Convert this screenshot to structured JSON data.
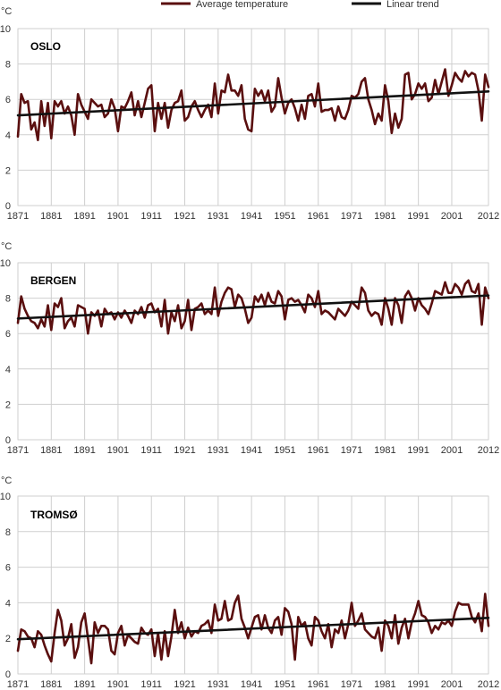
{
  "legend": {
    "average_label": "Average temperature",
    "trend_label": "Linear trend"
  },
  "colors": {
    "average": "#5a0f0f",
    "trend": "#111111",
    "grid": "#cfcfcf"
  },
  "chart_data": [
    {
      "type": "line",
      "title": "OSLO",
      "unit": "°C",
      "xlim": [
        1871,
        2012
      ],
      "ylim": [
        0,
        10
      ],
      "xticks": [
        "1871",
        "1881",
        "1891",
        "1901",
        "1911",
        "1921",
        "1931",
        "1941",
        "1951",
        "1961",
        "1971",
        "1981",
        "1991",
        "2001",
        "2012"
      ],
      "yticks": [
        "0",
        "2",
        "4",
        "6",
        "8",
        "10"
      ],
      "grid": true,
      "legend_position": "top",
      "x": [
        1871,
        1872,
        1873,
        1874,
        1875,
        1876,
        1877,
        1878,
        1879,
        1880,
        1881,
        1882,
        1883,
        1884,
        1885,
        1886,
        1887,
        1888,
        1889,
        1890,
        1891,
        1892,
        1893,
        1894,
        1895,
        1896,
        1897,
        1898,
        1899,
        1900,
        1901,
        1902,
        1903,
        1904,
        1905,
        1906,
        1907,
        1908,
        1909,
        1910,
        1911,
        1912,
        1913,
        1914,
        1915,
        1916,
        1917,
        1918,
        1919,
        1920,
        1921,
        1922,
        1923,
        1924,
        1925,
        1926,
        1927,
        1928,
        1929,
        1930,
        1931,
        1932,
        1933,
        1934,
        1935,
        1936,
        1937,
        1938,
        1939,
        1940,
        1941,
        1942,
        1943,
        1944,
        1945,
        1946,
        1947,
        1948,
        1949,
        1950,
        1951,
        1952,
        1953,
        1954,
        1955,
        1956,
        1957,
        1958,
        1959,
        1960,
        1961,
        1962,
        1963,
        1964,
        1965,
        1966,
        1967,
        1968,
        1969,
        1970,
        1971,
        1972,
        1973,
        1974,
        1975,
        1976,
        1977,
        1978,
        1979,
        1980,
        1981,
        1982,
        1983,
        1984,
        1985,
        1986,
        1987,
        1988,
        1989,
        1990,
        1991,
        1992,
        1993,
        1994,
        1995,
        1996,
        1997,
        1998,
        1999,
        2000,
        2001,
        2002,
        2003,
        2004,
        2005,
        2006,
        2007,
        2008,
        2009,
        2010,
        2011,
        2012
      ],
      "series": [
        {
          "name": "Average temperature",
          "values": [
            3.9,
            6.3,
            5.8,
            5.9,
            4.3,
            4.7,
            3.7,
            5.9,
            4.5,
            5.8,
            3.8,
            5.9,
            5.6,
            5.9,
            5.2,
            5.6,
            5.1,
            4.0,
            6.3,
            5.7,
            5.3,
            4.9,
            6.0,
            5.8,
            5.6,
            5.7,
            5.0,
            5.2,
            6.0,
            5.5,
            4.2,
            5.6,
            5.5,
            5.9,
            6.4,
            5.1,
            5.9,
            5.0,
            5.8,
            6.6,
            6.8,
            4.2,
            5.8,
            4.9,
            5.8,
            4.4,
            5.4,
            5.8,
            5.9,
            6.5,
            4.8,
            5.0,
            5.6,
            5.9,
            5.4,
            5.0,
            5.4,
            5.7,
            5.0,
            6.9,
            5.2,
            6.5,
            6.4,
            7.4,
            6.5,
            6.5,
            6.2,
            6.8,
            4.9,
            4.3,
            4.2,
            6.6,
            6.2,
            6.5,
            5.9,
            6.5,
            5.3,
            5.6,
            7.2,
            6.1,
            5.2,
            5.8,
            6.0,
            5.5,
            4.8,
            5.7,
            4.9,
            6.2,
            6.3,
            5.6,
            6.9,
            5.3,
            5.4,
            5.4,
            5.5,
            4.8,
            5.6,
            5.0,
            4.9,
            5.4,
            6.2,
            6.1,
            6.3,
            7.0,
            7.2,
            6.0,
            5.4,
            4.6,
            5.2,
            4.8,
            6.8,
            5.9,
            4.1,
            5.2,
            4.4,
            4.9,
            7.4,
            7.5,
            6.0,
            6.3,
            6.9,
            6.6,
            6.9,
            5.9,
            6.1,
            7.1,
            6.3,
            7.0,
            7.7,
            6.2,
            6.8,
            7.5,
            7.2,
            7.0,
            7.6,
            7.3,
            7.5,
            7.4,
            6.5,
            4.8,
            7.4,
            6.7
          ]
        },
        {
          "name": "Linear trend",
          "values": [
            5.1,
            6.45
          ],
          "x": [
            1871,
            2012
          ]
        }
      ]
    },
    {
      "type": "line",
      "title": "BERGEN",
      "unit": "°C",
      "xlim": [
        1871,
        2012
      ],
      "ylim": [
        0,
        10
      ],
      "xticks": [
        "1871",
        "1881",
        "1891",
        "1901",
        "1911",
        "1921",
        "1931",
        "1941",
        "1951",
        "1961",
        "1971",
        "1981",
        "1991",
        "2001",
        "2012"
      ],
      "yticks": [
        "0",
        "2",
        "4",
        "6",
        "8",
        "10"
      ],
      "grid": true,
      "x": [
        1871,
        1872,
        1873,
        1874,
        1875,
        1876,
        1877,
        1878,
        1879,
        1880,
        1881,
        1882,
        1883,
        1884,
        1885,
        1886,
        1887,
        1888,
        1889,
        1890,
        1891,
        1892,
        1893,
        1894,
        1895,
        1896,
        1897,
        1898,
        1899,
        1900,
        1901,
        1902,
        1903,
        1904,
        1905,
        1906,
        1907,
        1908,
        1909,
        1910,
        1911,
        1912,
        1913,
        1914,
        1915,
        1916,
        1917,
        1918,
        1919,
        1920,
        1921,
        1922,
        1923,
        1924,
        1925,
        1926,
        1927,
        1928,
        1929,
        1930,
        1931,
        1932,
        1933,
        1934,
        1935,
        1936,
        1937,
        1938,
        1939,
        1940,
        1941,
        1942,
        1943,
        1944,
        1945,
        1946,
        1947,
        1948,
        1949,
        1950,
        1951,
        1952,
        1953,
        1954,
        1955,
        1956,
        1957,
        1958,
        1959,
        1960,
        1961,
        1962,
        1963,
        1964,
        1965,
        1966,
        1967,
        1968,
        1969,
        1970,
        1971,
        1972,
        1973,
        1974,
        1975,
        1976,
        1977,
        1978,
        1979,
        1980,
        1981,
        1982,
        1983,
        1984,
        1985,
        1986,
        1987,
        1988,
        1989,
        1990,
        1991,
        1992,
        1993,
        1994,
        1995,
        1996,
        1997,
        1998,
        1999,
        2000,
        2001,
        2002,
        2003,
        2004,
        2005,
        2006,
        2007,
        2008,
        2009,
        2010,
        2011,
        2012
      ],
      "series": [
        {
          "name": "Average temperature",
          "values": [
            6.6,
            8.1,
            7.4,
            7.0,
            6.7,
            6.6,
            6.3,
            6.8,
            6.4,
            7.6,
            6.2,
            7.7,
            7.5,
            8.0,
            6.3,
            6.7,
            6.9,
            6.4,
            7.6,
            7.5,
            7.4,
            6.0,
            7.2,
            7.0,
            7.3,
            6.4,
            7.4,
            7.1,
            7.2,
            6.8,
            7.2,
            6.9,
            7.3,
            7.0,
            6.6,
            7.3,
            7.1,
            7.5,
            6.9,
            7.6,
            7.7,
            7.2,
            7.4,
            6.4,
            7.9,
            6.0,
            7.2,
            6.7,
            7.6,
            6.3,
            6.7,
            7.9,
            6.2,
            7.4,
            7.5,
            7.7,
            7.1,
            7.3,
            7.1,
            8.6,
            7.0,
            7.8,
            8.3,
            8.6,
            8.5,
            7.5,
            8.2,
            8.0,
            7.4,
            6.6,
            6.9,
            8.1,
            7.8,
            8.2,
            7.6,
            8.3,
            7.8,
            7.7,
            8.4,
            8.1,
            6.8,
            7.9,
            8.0,
            7.8,
            7.9,
            7.6,
            7.2,
            8.2,
            8.0,
            7.5,
            8.4,
            7.1,
            7.3,
            7.2,
            7.0,
            6.8,
            7.4,
            7.2,
            7.0,
            7.3,
            7.8,
            7.6,
            7.4,
            8.6,
            8.3,
            7.3,
            7.0,
            7.2,
            7.1,
            6.5,
            8.0,
            7.4,
            6.5,
            8.0,
            7.6,
            6.6,
            8.1,
            8.4,
            8.0,
            7.3,
            8.0,
            7.6,
            7.4,
            7.1,
            7.7,
            8.4,
            8.3,
            8.2,
            8.9,
            8.3,
            8.3,
            8.8,
            8.6,
            8.2,
            8.8,
            9.0,
            8.4,
            8.3,
            8.8,
            6.5,
            8.6,
            8.0
          ]
        },
        {
          "name": "Linear trend",
          "values": [
            6.85,
            8.15
          ],
          "x": [
            1871,
            2012
          ]
        }
      ]
    },
    {
      "type": "line",
      "title": "TROMSØ",
      "unit": "°C",
      "xlim": [
        1871,
        2012
      ],
      "ylim": [
        0,
        10
      ],
      "xticks": [
        "1871",
        "1881",
        "1891",
        "1901",
        "1911",
        "1921",
        "1931",
        "1941",
        "1951",
        "1961",
        "1971",
        "1981",
        "1991",
        "2001",
        "2012"
      ],
      "yticks": [
        "0",
        "2",
        "4",
        "6",
        "8",
        "10"
      ],
      "grid": true,
      "x": [
        1871,
        1872,
        1873,
        1874,
        1875,
        1876,
        1877,
        1878,
        1879,
        1880,
        1881,
        1882,
        1883,
        1884,
        1885,
        1886,
        1887,
        1888,
        1889,
        1890,
        1891,
        1892,
        1893,
        1894,
        1895,
        1896,
        1897,
        1898,
        1899,
        1900,
        1901,
        1902,
        1903,
        1904,
        1905,
        1906,
        1907,
        1908,
        1909,
        1910,
        1911,
        1912,
        1913,
        1914,
        1915,
        1916,
        1917,
        1918,
        1919,
        1920,
        1921,
        1922,
        1923,
        1924,
        1925,
        1926,
        1927,
        1928,
        1929,
        1930,
        1931,
        1932,
        1933,
        1934,
        1935,
        1936,
        1937,
        1938,
        1939,
        1940,
        1941,
        1942,
        1943,
        1944,
        1945,
        1946,
        1947,
        1948,
        1949,
        1950,
        1951,
        1952,
        1953,
        1954,
        1955,
        1956,
        1957,
        1958,
        1959,
        1960,
        1961,
        1962,
        1963,
        1964,
        1965,
        1966,
        1967,
        1968,
        1969,
        1970,
        1971,
        1972,
        1973,
        1974,
        1975,
        1976,
        1977,
        1978,
        1979,
        1980,
        1981,
        1982,
        1983,
        1984,
        1985,
        1986,
        1987,
        1988,
        1989,
        1990,
        1991,
        1992,
        1993,
        1994,
        1995,
        1996,
        1997,
        1998,
        1999,
        2000,
        2001,
        2002,
        2003,
        2004,
        2005,
        2006,
        2007,
        2008,
        2009,
        2010,
        2011,
        2012
      ],
      "series": [
        {
          "name": "Average temperature",
          "values": [
            1.3,
            2.5,
            2.4,
            2.1,
            2.0,
            1.5,
            2.4,
            2.2,
            1.6,
            1.1,
            0.7,
            2.3,
            3.6,
            3.0,
            1.6,
            2.0,
            2.8,
            0.9,
            1.5,
            2.9,
            3.4,
            2.0,
            0.6,
            2.9,
            2.3,
            2.7,
            2.7,
            2.5,
            1.3,
            1.1,
            2.3,
            2.7,
            1.6,
            2.2,
            2.0,
            1.8,
            1.7,
            2.6,
            2.3,
            2.2,
            2.5,
            1.0,
            2.3,
            0.8,
            2.4,
            1.0,
            2.1,
            3.6,
            2.3,
            2.9,
            2.0,
            2.6,
            2.1,
            2.4,
            2.3,
            2.7,
            2.8,
            3.0,
            2.3,
            3.9,
            3.0,
            3.1,
            4.1,
            3.0,
            3.1,
            4.0,
            4.4,
            3.1,
            2.6,
            2.0,
            2.6,
            3.2,
            3.3,
            2.5,
            3.3,
            2.6,
            2.3,
            3.0,
            3.2,
            2.2,
            3.7,
            3.5,
            2.8,
            0.8,
            3.2,
            2.7,
            2.9,
            2.0,
            1.6,
            3.2,
            3.0,
            2.4,
            2.0,
            2.8,
            1.5,
            2.5,
            2.3,
            3.0,
            2.0,
            2.8,
            4.0,
            2.7,
            3.0,
            3.4,
            2.5,
            2.3,
            2.1,
            2.0,
            2.6,
            1.3,
            3.0,
            2.7,
            2.0,
            3.3,
            1.7,
            2.6,
            3.1,
            2.0,
            2.9,
            3.4,
            4.1,
            3.3,
            3.2,
            2.9,
            2.3,
            2.7,
            2.5,
            2.9,
            2.8,
            3.0,
            2.7,
            3.5,
            4.0,
            3.9,
            3.9,
            3.9,
            3.2,
            2.9,
            3.4,
            2.4,
            4.5,
            2.7
          ]
        },
        {
          "name": "Linear trend",
          "values": [
            1.95,
            3.15
          ],
          "x": [
            1871,
            2012
          ]
        }
      ]
    }
  ]
}
